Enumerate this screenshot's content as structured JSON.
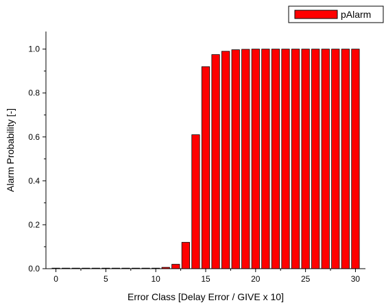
{
  "chart_data": {
    "type": "bar",
    "title": "",
    "xlabel": "Error Class [Delay Error / GIVE x 10]",
    "ylabel": "Alarm Probability [-]",
    "xlim": [
      -1,
      31
    ],
    "ylim": [
      0,
      1.08
    ],
    "xticks": [
      "0",
      "5",
      "10",
      "15",
      "20",
      "25",
      "30"
    ],
    "yticks": [
      "0.0",
      "0.2",
      "0.4",
      "0.6",
      "0.8",
      "1.0"
    ],
    "legend_position": "top-right",
    "bar_color": "#ff0000",
    "series": [
      {
        "name": "pAlarm",
        "x": [
          0,
          1,
          2,
          3,
          4,
          5,
          6,
          7,
          8,
          9,
          10,
          11,
          12,
          13,
          14,
          15,
          16,
          17,
          18,
          19,
          20,
          21,
          22,
          23,
          24,
          25,
          26,
          27,
          28,
          29,
          30
        ],
        "values": [
          0,
          0,
          0,
          0,
          0,
          0,
          0,
          0,
          0,
          0,
          0.002,
          0.006,
          0.02,
          0.12,
          0.61,
          0.92,
          0.975,
          0.99,
          0.997,
          0.999,
          1,
          1,
          1,
          1,
          1,
          1,
          1,
          1,
          1,
          1,
          1
        ]
      }
    ]
  }
}
